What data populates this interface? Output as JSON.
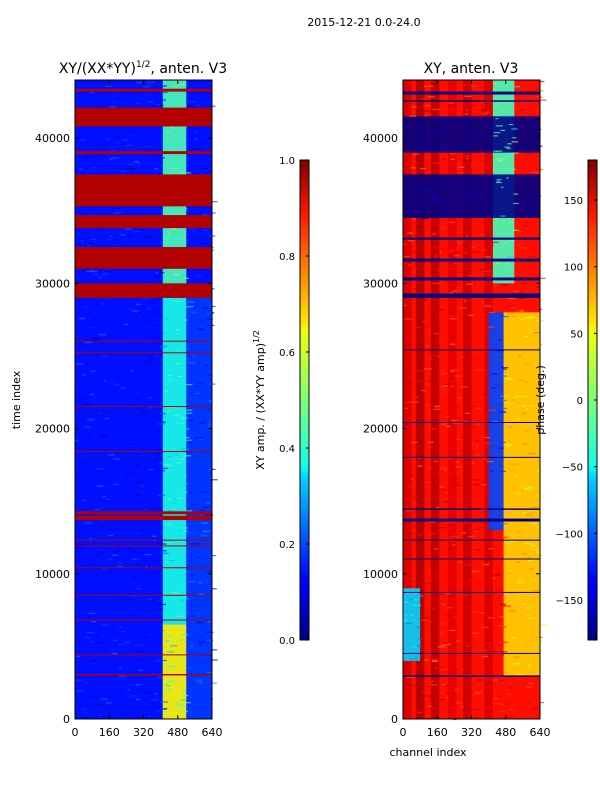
{
  "figure": {
    "suptitle": "2015-12-21 0.0-24.0"
  },
  "chart_data": [
    {
      "type": "heatmap",
      "title": "XY/(XX*YY)^1/2, anten. V3",
      "title_base": "XY/(XX*YY)",
      "title_exp": "1/2",
      "title_tail": ", anten. V3",
      "xlabel": "",
      "ylabel": "time index",
      "xlim": [
        0,
        640
      ],
      "ylim": [
        0,
        44000
      ],
      "xticks": [
        0,
        160,
        320,
        480,
        640
      ],
      "yticks": [
        0,
        10000,
        20000,
        30000,
        40000
      ],
      "colorbar": {
        "label_base": "XY amp. / (XX*YY amp)",
        "label_exp": "1/2",
        "range": [
          0.0,
          1.0
        ],
        "ticks": [
          "0.0",
          "0.2",
          "0.4",
          "0.6",
          "0.8",
          "1.0"
        ]
      },
      "background_value": 0.14,
      "region_values": [
        {
          "x": [
            0,
            410
          ],
          "y": [
            0,
            29000
          ],
          "value": 0.14
        },
        {
          "x": [
            410,
            520
          ],
          "y": [
            0,
            29000
          ],
          "value": 0.4
        },
        {
          "x": [
            410,
            520
          ],
          "y": [
            0,
            6500
          ],
          "value": 0.65
        },
        {
          "x": [
            520,
            640
          ],
          "y": [
            0,
            29000
          ],
          "value": 0.18
        },
        {
          "x": [
            410,
            520
          ],
          "y": [
            29500,
            44000
          ],
          "value": 0.45
        }
      ],
      "flagged_bands_value": 0.95,
      "flagged_bands": [
        [
          29000,
          30000
        ],
        [
          31000,
          32500
        ],
        [
          33800,
          34700
        ],
        [
          35300,
          37500
        ],
        [
          38900,
          39100
        ],
        [
          40800,
          42100
        ],
        [
          43200,
          43400
        ],
        [
          13700,
          14000
        ],
        [
          14100,
          14300
        ],
        [
          3000,
          3100
        ],
        [
          4400,
          4450
        ],
        [
          6800,
          6850
        ],
        [
          8500,
          8550
        ],
        [
          10400,
          10450
        ],
        [
          11900,
          11950
        ],
        [
          12300,
          12350
        ],
        [
          18400,
          18450
        ],
        [
          21500,
          21550
        ],
        [
          25200,
          25250
        ],
        [
          26000,
          26050
        ]
      ]
    },
    {
      "type": "heatmap",
      "title": "XY, anten. V3",
      "xlabel": "channel index",
      "ylabel": "",
      "xlim": [
        0,
        640
      ],
      "ylim": [
        0,
        44000
      ],
      "xticks": [
        0,
        160,
        320,
        480,
        640
      ],
      "yticks": [
        0,
        10000,
        20000,
        30000,
        40000
      ],
      "colorbar": {
        "label": "phase (deg.)",
        "range": [
          -180,
          180
        ],
        "ticks": [
          "−150",
          "−100",
          "−50",
          "0",
          "50",
          "100",
          "150"
        ]
      },
      "background_value": 130,
      "column_stripes": [
        {
          "x": [
            0,
            40
          ],
          "value": 150
        },
        {
          "x": [
            60,
            100
          ],
          "value": 165
        },
        {
          "x": [
            130,
            170
          ],
          "value": 160
        },
        {
          "x": [
            210,
            250
          ],
          "value": 145
        },
        {
          "x": [
            280,
            320
          ],
          "value": 155
        },
        {
          "x": [
            380,
            420
          ],
          "value": 150
        }
      ],
      "region_values": [
        {
          "x": [
            400,
            470
          ],
          "y": [
            13000,
            28000
          ],
          "value": -110
        },
        {
          "x": [
            470,
            640
          ],
          "y": [
            3000,
            28000
          ],
          "value": 60
        },
        {
          "x": [
            0,
            80
          ],
          "y": [
            4000,
            9000
          ],
          "value": -60
        },
        {
          "x": [
            420,
            520
          ],
          "y": [
            30000,
            44000
          ],
          "value": -20
        },
        {
          "x": [
            0,
            640
          ],
          "y": [
            34500,
            37500
          ],
          "value": -178
        },
        {
          "x": [
            0,
            640
          ],
          "y": [
            39000,
            41500
          ],
          "value": -178
        }
      ],
      "flagged_bands_value": -178,
      "flagged_bands": [
        [
          29000,
          29300
        ],
        [
          30200,
          30400
        ],
        [
          31500,
          31700
        ],
        [
          33000,
          33150
        ],
        [
          43000,
          43200
        ],
        [
          42500,
          42600
        ],
        [
          13600,
          13800
        ],
        [
          14400,
          14500
        ],
        [
          2900,
          3000
        ],
        [
          4500,
          4550
        ],
        [
          8700,
          8750
        ],
        [
          11000,
          11050
        ],
        [
          12300,
          12350
        ],
        [
          18000,
          18050
        ],
        [
          20400,
          20450
        ],
        [
          25400,
          25450
        ]
      ]
    }
  ]
}
